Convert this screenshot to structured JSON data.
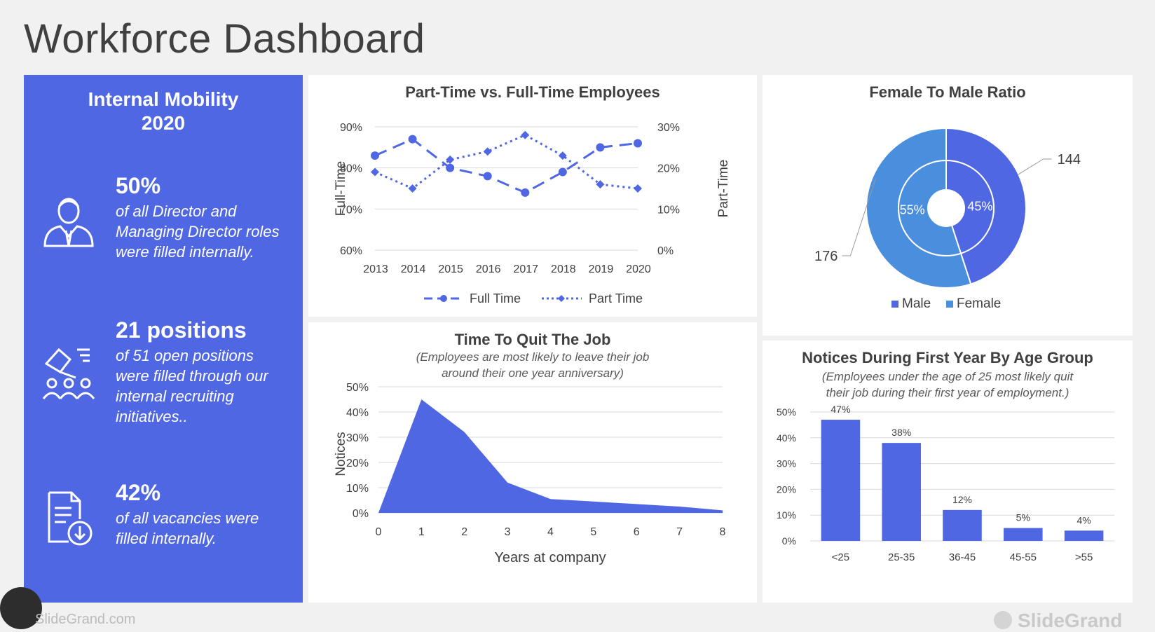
{
  "page_title": "Workforce Dashboard",
  "mobility": {
    "heading_line1": "Internal Mobility",
    "heading_line2": "2020",
    "stats": [
      {
        "value": "50%",
        "icon": "executive-person-icon",
        "lines": [
          "of all Director and",
          "Managing Director roles",
          "were filled internally."
        ]
      },
      {
        "value": "21 positions",
        "icon": "hiring-hand-group-icon",
        "lines": [
          "of 51 open positions",
          "were filled through our",
          "internal recruiting",
          "initiatives.."
        ]
      },
      {
        "value": "42%",
        "icon": "document-download-icon",
        "lines": [
          "of all vacancies were",
          "filled internally."
        ]
      }
    ]
  },
  "colors": {
    "accent": "#4f67e2",
    "male": "#4f67e2",
    "female": "#4a8fde",
    "text_dark": "#404040",
    "grid": "#d9d9d9"
  },
  "chart_data": [
    {
      "type": "line",
      "title": "Part-Time vs. Full-Time Employees",
      "x": [
        "2013",
        "2014",
        "2015",
        "2016",
        "2017",
        "2018",
        "2019",
        "2020"
      ],
      "ylabel": "Full-Time",
      "y2label": "Part-Time",
      "ylim": [
        60,
        90
      ],
      "y2lim": [
        0,
        30
      ],
      "yticks": [
        "60%",
        "70%",
        "80%",
        "90%"
      ],
      "y2ticks": [
        "0%",
        "10%",
        "20%",
        "30%"
      ],
      "series": [
        {
          "name": "Full Time",
          "axis": "left",
          "style": "dashed",
          "values": [
            83,
            87,
            80,
            78,
            74,
            79,
            85,
            86
          ]
        },
        {
          "name": "Part Time",
          "axis": "right",
          "style": "dotted",
          "values": [
            19,
            15,
            22,
            24,
            28,
            23,
            16,
            15
          ]
        }
      ],
      "legend": "bottom"
    },
    {
      "type": "pie",
      "title": "Female To Male Ratio",
      "categories": [
        "Male",
        "Female"
      ],
      "values": [
        144,
        176
      ],
      "percent_labels": [
        "45%",
        "55%"
      ],
      "value_labels": [
        "144",
        "176"
      ],
      "legend": "bottom"
    },
    {
      "type": "area",
      "title": "Time To Quit The Job",
      "subtitle_line1": "(Employees are most likely to leave their job",
      "subtitle_line2": "around their one year anniversary)",
      "x": [
        0,
        1,
        2,
        3,
        4,
        5,
        6,
        7,
        8
      ],
      "values": [
        0,
        45,
        32,
        12,
        5.5,
        4.5,
        3.5,
        2.5,
        1
      ],
      "xlabel": "Years at company",
      "ylabel": "Notices",
      "ylim": [
        0,
        50
      ],
      "yticks": [
        "0%",
        "10%",
        "20%",
        "30%",
        "40%",
        "50%"
      ]
    },
    {
      "type": "bar",
      "title": "Notices During First Year By Age Group",
      "subtitle_line1": "(Employees under the age of 25 most likely quit",
      "subtitle_line2": "their job during their first year of employment.)",
      "categories": [
        "<25",
        "25-35",
        "36-45",
        "45-55",
        ">55"
      ],
      "values": [
        47,
        38,
        12,
        5,
        4
      ],
      "data_labels": [
        "47%",
        "38%",
        "12%",
        "5%",
        "4%"
      ],
      "ylim": [
        0,
        50
      ],
      "yticks": [
        "0%",
        "10%",
        "20%",
        "30%",
        "40%",
        "50%"
      ]
    }
  ],
  "footer": {
    "source": "SlideGrand.com",
    "brand": "SlideGrand"
  }
}
